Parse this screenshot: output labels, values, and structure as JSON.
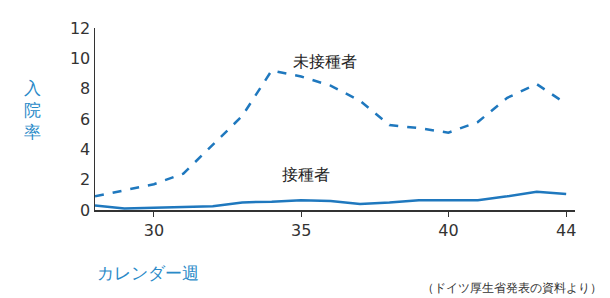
{
  "chart_data": {
    "type": "line",
    "x_label": "カレンダー週",
    "y_label": "入院率",
    "annotations": [
      "（ドイツ厚生省発表の資料より）"
    ],
    "x": [
      28,
      29,
      30,
      31,
      32,
      33,
      34,
      35,
      36,
      37,
      38,
      39,
      40,
      41,
      42,
      43,
      44
    ],
    "series": [
      {
        "name": "未接種者",
        "color": "#1f78be",
        "line_style": "dashed",
        "values": [
          0.9,
          1.3,
          1.7,
          2.4,
          4.3,
          6.2,
          9.2,
          8.8,
          8.2,
          7.2,
          5.6,
          5.4,
          5.1,
          5.8,
          7.4,
          8.3,
          7.0
        ]
      },
      {
        "name": "接種者",
        "color": "#1f78be",
        "line_style": "solid",
        "values": [
          0.3,
          0.1,
          0.15,
          0.2,
          0.25,
          0.5,
          0.55,
          0.65,
          0.6,
          0.4,
          0.5,
          0.65,
          0.65,
          0.65,
          0.9,
          1.2,
          1.05
        ]
      }
    ],
    "xlim": [
      28,
      44.3
    ],
    "xticks": [
      30,
      35,
      40,
      44
    ],
    "ylim": [
      0,
      12
    ],
    "yticks": [
      0,
      2,
      4,
      6,
      8,
      10,
      12
    ],
    "grid": false
  }
}
